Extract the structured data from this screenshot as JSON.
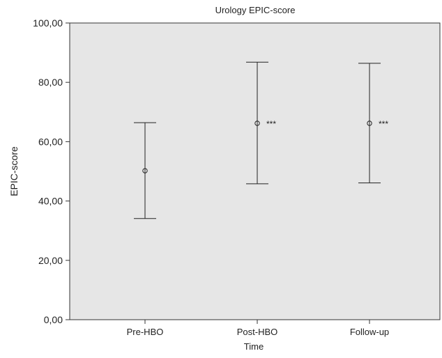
{
  "chart_data": {
    "type": "errorbar",
    "title": "Urology EPIC-score",
    "xlabel": "Time",
    "ylabel": "EPIC-score",
    "categories": [
      "Pre-HBO",
      "Post-HBO",
      "Follow-up"
    ],
    "series": [
      {
        "mean": [
          50.2,
          66.2,
          66.2
        ],
        "lower": [
          34.1,
          45.8,
          46.1
        ],
        "upper": [
          66.4,
          86.8,
          86.4
        ],
        "annotations": [
          "",
          "***",
          "***"
        ]
      }
    ],
    "ylim": [
      0,
      100
    ],
    "yticks": [
      0,
      20,
      40,
      60,
      80,
      100
    ],
    "ytick_labels": [
      "0,00",
      "20,00",
      "40,00",
      "60,00",
      "80,00",
      "100,00"
    ],
    "grid": false,
    "plot_background": "#e6e6e6",
    "marker": "open-circle"
  }
}
